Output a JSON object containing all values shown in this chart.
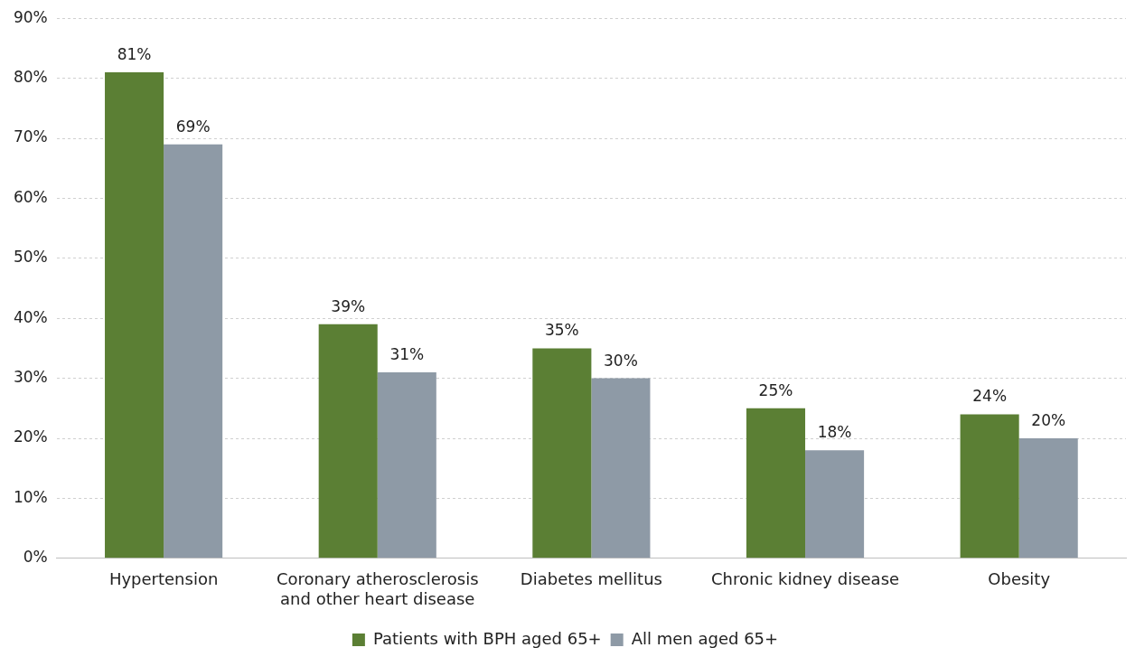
{
  "chart_data": {
    "type": "bar",
    "categories": [
      "Hypertension",
      "Coronary atherosclerosis and other heart disease",
      "Diabetes mellitus",
      "Chronic kidney disease",
      "Obesity"
    ],
    "series": [
      {
        "name": "Patients with BPH aged 65+",
        "color": "#5b7f34",
        "values": [
          81,
          39,
          35,
          25,
          24
        ],
        "value_labels": [
          "81%",
          "39%",
          "35%",
          "25%",
          "24%"
        ]
      },
      {
        "name": "All men aged 65+",
        "color": "#8e9aa6",
        "values": [
          69,
          31,
          30,
          18,
          20
        ],
        "value_labels": [
          "69%",
          "31%",
          "30%",
          "18%",
          "20%"
        ]
      }
    ],
    "ylim": [
      0,
      90
    ],
    "yticks": [
      {
        "value": 0,
        "label": "0%"
      },
      {
        "value": 10,
        "label": "10%"
      },
      {
        "value": 20,
        "label": "20%"
      },
      {
        "value": 30,
        "label": "30%"
      },
      {
        "value": 40,
        "label": "40%"
      },
      {
        "value": 50,
        "label": "50%"
      },
      {
        "value": 60,
        "label": "60%"
      },
      {
        "value": 70,
        "label": "70%"
      },
      {
        "value": 80,
        "label": "80%"
      },
      {
        "value": 90,
        "label": "90%"
      }
    ],
    "grid": "y",
    "legend": "bottom"
  }
}
